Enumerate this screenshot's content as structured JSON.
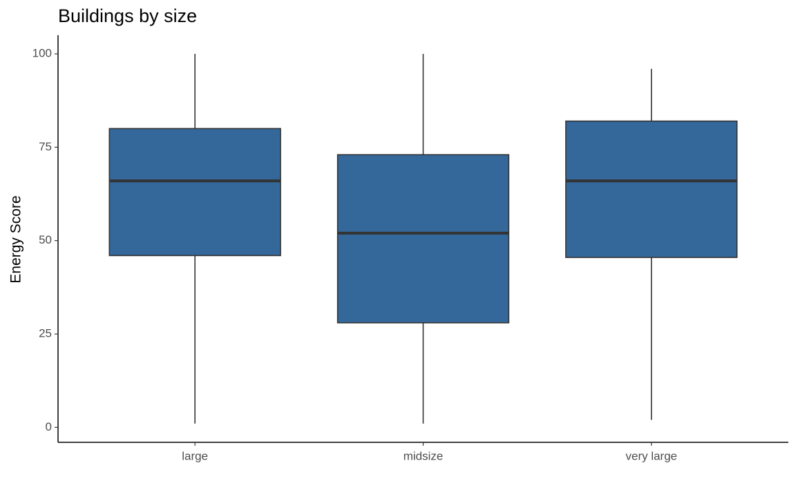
{
  "chart_data": {
    "type": "box",
    "title": "Buildings by size",
    "y_label": "Energy Score",
    "categories": [
      "large",
      "midsize",
      "very large"
    ],
    "min": [
      1,
      1,
      2
    ],
    "q1": [
      46,
      28,
      45.5
    ],
    "median": [
      66,
      52,
      66
    ],
    "q3": [
      80,
      73,
      82
    ],
    "max": [
      100,
      100,
      96
    ],
    "color": "#34679a",
    "ylim": [
      -4,
      105
    ],
    "yticks": [
      0,
      25,
      50,
      75,
      100
    ],
    "grid": false
  }
}
